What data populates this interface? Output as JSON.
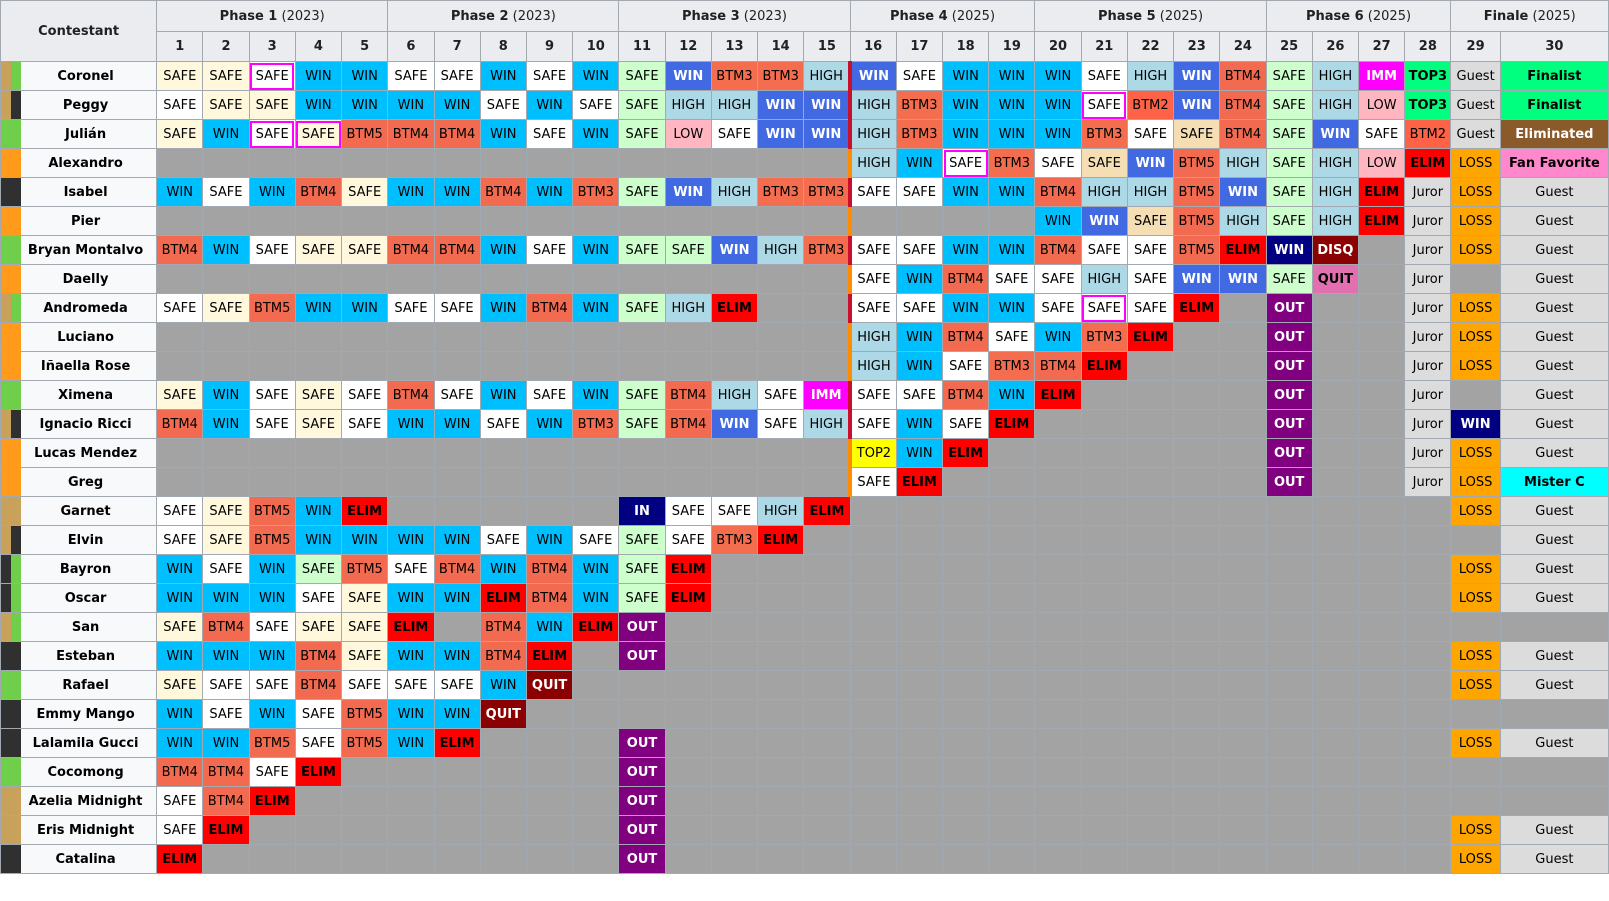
{
  "header": {
    "contestant_label": "Contestant",
    "phases": [
      {
        "name": "Phase 1",
        "year": "(2023)",
        "span": 5
      },
      {
        "name": "Phase 2",
        "year": "(2023)",
        "span": 5
      },
      {
        "name": "Phase 3",
        "year": "(2023)",
        "span": 5
      },
      {
        "name": "Phase 4",
        "year": "(2025)",
        "span": 4
      },
      {
        "name": "Phase 5",
        "year": "(2025)",
        "span": 5
      },
      {
        "name": "Phase 6",
        "year": "(2025)",
        "span": 4
      },
      {
        "name": "Finale",
        "year": "(2025)",
        "span": 2
      }
    ],
    "episodes": [
      "1",
      "2",
      "3",
      "4",
      "5",
      "6",
      "7",
      "8",
      "9",
      "10",
      "11",
      "12",
      "13",
      "14",
      "15",
      "16",
      "17",
      "18",
      "19",
      "20",
      "21",
      "22",
      "23",
      "24",
      "25",
      "26",
      "27",
      "28",
      "29",
      "30"
    ]
  },
  "colors": {
    "stripe_gold": "#c8a25a",
    "stripe_green": "#6fcf4a",
    "stripe_black": "#303030",
    "stripe_orange": "#ff9a1a",
    "gap": "#a3a3a3"
  },
  "rows": [
    {
      "name": "Coronel",
      "stripe": "gold-green",
      "cells": [
        "SAFE|SAFEc",
        "SAFE|SAFEc",
        "SAFE|SAFE|hl",
        "WIN",
        "WIN",
        "SAFE",
        "SAFE",
        "WIN",
        "SAFE",
        "WIN",
        "SAFE|SAFEg",
        "WIN|WIN2",
        "BTM3",
        "BTM3",
        "HIGH",
        "WIN|WIN2",
        "SAFE",
        "WIN",
        "WIN",
        "WIN",
        "SAFE",
        "HIGH",
        "WIN|WIN2",
        "BTM4",
        "SAFE|SAFEg",
        "HIGH",
        "IMM",
        "TOP3",
        "Guest",
        "Finalist"
      ]
    },
    {
      "name": "Peggy",
      "stripe": "gold-black",
      "cells": [
        "SAFE",
        "SAFE|SAFEc",
        "SAFE|SAFEc",
        "WIN",
        "WIN",
        "WIN",
        "WIN",
        "SAFE",
        "WIN",
        "SAFE",
        "SAFE|SAFEg",
        "HIGH",
        "HIGH",
        "WIN|WIN2",
        "WIN|WIN2",
        "HIGH",
        "BTM3",
        "WIN",
        "WIN",
        "WIN",
        "SAFE|SAFE|hl",
        "BTM2",
        "WIN|WIN2",
        "BTM4",
        "SAFE|SAFEg",
        "HIGH",
        "LOW",
        "TOP3",
        "Guest",
        "Finalist"
      ]
    },
    {
      "name": "Julián",
      "stripe": "green",
      "cells": [
        "SAFE|SAFEc",
        "WIN",
        "SAFE|SAFE|hl",
        "SAFE|SAFEc|hl",
        "BTM5",
        "BTM4",
        "BTM4",
        "WIN",
        "SAFE",
        "WIN",
        "SAFE|SAFEg",
        "LOW",
        "SAFE",
        "WIN|WIN2",
        "WIN|WIN2",
        "HIGH",
        "BTM3",
        "WIN",
        "WIN",
        "WIN",
        "BTM3",
        "SAFE",
        "SAFE|SAFEw",
        "BTM4",
        "SAFE|SAFEg",
        "WIN|WIN2",
        "SAFE",
        "BTM2",
        "Guest",
        "Eliminated"
      ]
    },
    {
      "name": "Alexandro",
      "stripe": "orange",
      "cells": [
        "",
        "",
        "",
        "",
        "",
        "",
        "",
        "",
        "",
        "",
        "",
        "",
        "",
        "",
        "",
        "HIGH",
        "WIN",
        "SAFE|SAFE|hl",
        "BTM3",
        "SAFE",
        "SAFE|SAFEw",
        "WIN|WIN2",
        "BTM5",
        "HIGH",
        "SAFE|SAFEg",
        "HIGH",
        "LOW",
        "ELIM",
        "LOSS",
        "Fan Favorite|FanFavorite"
      ]
    },
    {
      "name": "Isabel",
      "stripe": "black",
      "cells": [
        "WIN",
        "SAFE",
        "WIN",
        "BTM4",
        "SAFE|SAFEc",
        "WIN",
        "WIN",
        "BTM4",
        "WIN",
        "BTM3",
        "SAFE|SAFEg",
        "WIN|WIN2",
        "HIGH",
        "BTM3",
        "BTM3",
        "SAFE",
        "SAFE",
        "WIN",
        "WIN",
        "BTM4",
        "HIGH",
        "HIGH",
        "BTM5",
        "WIN|WIN2",
        "SAFE|SAFEg",
        "HIGH",
        "ELIM",
        "Juror",
        "LOSS",
        "Guest"
      ]
    },
    {
      "name": "Pier",
      "stripe": "orange",
      "cells": [
        "",
        "",
        "",
        "",
        "",
        "",
        "",
        "",
        "",
        "",
        "",
        "",
        "",
        "",
        "",
        "",
        "",
        "",
        "",
        "WIN",
        "WIN|WIN2",
        "SAFE|SAFEw",
        "BTM5",
        "HIGH",
        "SAFE|SAFEg",
        "HIGH",
        "ELIM",
        "Juror",
        "LOSS",
        "Guest"
      ]
    },
    {
      "name": "Bryan Montalvo",
      "stripe": "green",
      "cells": [
        "BTM4",
        "WIN",
        "SAFE",
        "SAFE|SAFEc",
        "SAFE|SAFEc",
        "BTM4",
        "BTM4",
        "WIN",
        "SAFE",
        "WIN",
        "SAFE|SAFEg",
        "SAFE|SAFEg",
        "WIN|WIN2",
        "HIGH",
        "BTM3",
        "SAFE",
        "SAFE",
        "WIN",
        "WIN",
        "BTM4",
        "SAFE",
        "SAFE",
        "BTM5",
        "ELIM",
        "WIN|WINN",
        "DISQ",
        "",
        "Juror",
        "LOSS",
        "Guest"
      ]
    },
    {
      "name": "Daelly",
      "stripe": "orange",
      "cells": [
        "",
        "",
        "",
        "",
        "",
        "",
        "",
        "",
        "",
        "",
        "",
        "",
        "",
        "",
        "",
        "SAFE",
        "WIN",
        "BTM4",
        "SAFE",
        "SAFE",
        "HIGH",
        "SAFE",
        "WIN|WIN2",
        "WIN|WIN2",
        "SAFE|SAFEg",
        "QUIT|QUITp",
        "",
        "Juror",
        "",
        "Guest"
      ]
    },
    {
      "name": "Andromeda",
      "stripe": "gold-green",
      "cells": [
        "SAFE",
        "SAFE|SAFEc",
        "BTM5",
        "WIN",
        "WIN",
        "SAFE",
        "SAFE",
        "WIN",
        "BTM4",
        "WIN",
        "SAFE|SAFEg",
        "HIGH",
        "ELIM",
        "",
        "",
        "SAFE",
        "SAFE",
        "WIN",
        "WIN",
        "SAFE",
        "SAFE|SAFE|hl",
        "SAFE",
        "ELIM",
        "",
        "OUT",
        "",
        "",
        "Juror",
        "LOSS",
        "Guest"
      ]
    },
    {
      "name": "Luciano",
      "stripe": "orange",
      "cells": [
        "",
        "",
        "",
        "",
        "",
        "",
        "",
        "",
        "",
        "",
        "",
        "",
        "",
        "",
        "",
        "HIGH",
        "WIN",
        "BTM4",
        "SAFE",
        "WIN",
        "BTM3",
        "ELIM",
        "",
        "",
        "OUT",
        "",
        "",
        "Juror",
        "LOSS",
        "Guest"
      ]
    },
    {
      "name": "Iñaella Rose",
      "stripe": "orange",
      "cells": [
        "",
        "",
        "",
        "",
        "",
        "",
        "",
        "",
        "",
        "",
        "",
        "",
        "",
        "",
        "",
        "HIGH",
        "WIN",
        "SAFE",
        "BTM3",
        "BTM4",
        "ELIM",
        "",
        "",
        "",
        "OUT",
        "",
        "",
        "Juror",
        "LOSS",
        "Guest"
      ]
    },
    {
      "name": "Ximena",
      "stripe": "green",
      "cells": [
        "SAFE|SAFEc",
        "WIN",
        "SAFE",
        "SAFE|SAFEc",
        "SAFE",
        "BTM4",
        "SAFE",
        "WIN",
        "SAFE",
        "WIN",
        "SAFE|SAFEg",
        "BTM4",
        "HIGH",
        "SAFE",
        "IMM",
        "SAFE",
        "SAFE",
        "BTM4",
        "WIN",
        "ELIM",
        "",
        "",
        "",
        "",
        "OUT",
        "",
        "",
        "Juror",
        "",
        "Guest"
      ]
    },
    {
      "name": "Ignacio Ricci",
      "stripe": "gold-black",
      "cells": [
        "BTM4",
        "WIN",
        "SAFE",
        "SAFE|SAFEc",
        "SAFE",
        "WIN",
        "WIN",
        "SAFE",
        "WIN",
        "BTM3",
        "SAFE|SAFEg",
        "BTM4",
        "WIN|WIN2",
        "SAFE",
        "HIGH",
        "SAFE",
        "WIN",
        "SAFE",
        "ELIM",
        "",
        "",
        "",
        "",
        "",
        "OUT",
        "",
        "",
        "Juror",
        "WIN|WINN",
        "Guest"
      ]
    },
    {
      "name": "Lucas Mendez",
      "stripe": "orange",
      "cells": [
        "",
        "",
        "",
        "",
        "",
        "",
        "",
        "",
        "",
        "",
        "",
        "",
        "",
        "",
        "",
        "TOP2",
        "WIN",
        "ELIM",
        "",
        "",
        "",
        "",
        "",
        "",
        "OUT",
        "",
        "",
        "Juror",
        "LOSS",
        "Guest"
      ]
    },
    {
      "name": "Greg",
      "stripe": "orange",
      "cells": [
        "",
        "",
        "",
        "",
        "",
        "",
        "",
        "",
        "",
        "",
        "",
        "",
        "",
        "",
        "",
        "SAFE",
        "ELIM",
        "",
        "",
        "",
        "",
        "",
        "",
        "",
        "OUT",
        "",
        "",
        "Juror",
        "LOSS",
        "Mister C|MisterC"
      ]
    },
    {
      "name": "Garnet",
      "stripe": "gold",
      "cells": [
        "SAFE",
        "SAFE|SAFEc",
        "BTM5",
        "WIN",
        "ELIM",
        "",
        "",
        "",
        "",
        "",
        "IN",
        "SAFE",
        "SAFE",
        "HIGH",
        "ELIM",
        "",
        "",
        "",
        "",
        "",
        "",
        "",
        "",
        "",
        "",
        "",
        "",
        "",
        "LOSS",
        "Guest"
      ]
    },
    {
      "name": "Elvin",
      "stripe": "gold-black",
      "cells": [
        "SAFE",
        "SAFE|SAFEc",
        "BTM5",
        "WIN",
        "WIN",
        "WIN",
        "WIN",
        "SAFE",
        "WIN",
        "SAFE",
        "SAFE|SAFEg",
        "SAFE",
        "BTM3",
        "ELIM",
        "",
        "",
        "",
        "",
        "",
        "",
        "",
        "",
        "",
        "",
        "",
        "",
        "",
        "",
        "",
        "Guest"
      ]
    },
    {
      "name": "Bayron",
      "stripe": "black-green",
      "cells": [
        "WIN",
        "SAFE",
        "WIN",
        "SAFE|SAFEg",
        "BTM5",
        "SAFE",
        "BTM4",
        "WIN",
        "BTM4",
        "WIN",
        "SAFE|SAFEg",
        "ELIM",
        "",
        "",
        "",
        "",
        "",
        "",
        "",
        "",
        "",
        "",
        "",
        "",
        "",
        "",
        "",
        "",
        "LOSS",
        "Guest"
      ]
    },
    {
      "name": "Oscar",
      "stripe": "black-green",
      "cells": [
        "WIN",
        "WIN",
        "WIN",
        "SAFE",
        "SAFE|SAFEc",
        "WIN",
        "WIN",
        "ELIM",
        "BTM4",
        "WIN",
        "SAFE|SAFEg",
        "ELIM",
        "",
        "",
        "",
        "",
        "",
        "",
        "",
        "",
        "",
        "",
        "",
        "",
        "",
        "",
        "",
        "",
        "LOSS",
        "Guest"
      ]
    },
    {
      "name": "San",
      "stripe": "gold-green",
      "cells": [
        "SAFE|SAFEc",
        "BTM4",
        "SAFE",
        "SAFE|SAFEc",
        "SAFE|SAFEc",
        "ELIM",
        "",
        "BTM4",
        "WIN",
        "ELIM",
        "OUT",
        "",
        "",
        "",
        "",
        "",
        "",
        "",
        "",
        "",
        "",
        "",
        "",
        "",
        "",
        "",
        "",
        "",
        "",
        ""
      ]
    },
    {
      "name": "Esteban",
      "stripe": "black",
      "cells": [
        "WIN",
        "WIN",
        "WIN",
        "BTM4",
        "SAFE|SAFEc",
        "WIN",
        "WIN",
        "BTM4",
        "ELIM",
        "",
        "OUT",
        "",
        "",
        "",
        "",
        "",
        "",
        "",
        "",
        "",
        "",
        "",
        "",
        "",
        "",
        "",
        "",
        "",
        "LOSS",
        "Guest"
      ]
    },
    {
      "name": "Rafael",
      "stripe": "green",
      "cells": [
        "SAFE|SAFEc",
        "SAFE",
        "SAFE",
        "BTM4",
        "SAFE",
        "SAFE",
        "SAFE",
        "WIN",
        "QUIT",
        "",
        "",
        "",
        "",
        "",
        "",
        "",
        "",
        "",
        "",
        "",
        "",
        "",
        "",
        "",
        "",
        "",
        "",
        "",
        "LOSS",
        "Guest"
      ]
    },
    {
      "name": "Emmy Mango",
      "stripe": "black",
      "cells": [
        "WIN",
        "SAFE",
        "WIN",
        "SAFE",
        "BTM5",
        "WIN",
        "WIN",
        "QUIT",
        "",
        "",
        "",
        "",
        "",
        "",
        "",
        "",
        "",
        "",
        "",
        "",
        "",
        "",
        "",
        "",
        "",
        "",
        "",
        "",
        "",
        ""
      ]
    },
    {
      "name": "Lalamila Gucci",
      "stripe": "black",
      "cells": [
        "WIN",
        "WIN",
        "BTM5",
        "SAFE",
        "BTM5",
        "WIN",
        "ELIM",
        "",
        "",
        "",
        "OUT",
        "",
        "",
        "",
        "",
        "",
        "",
        "",
        "",
        "",
        "",
        "",
        "",
        "",
        "",
        "",
        "",
        "",
        "LOSS",
        "Guest"
      ]
    },
    {
      "name": "Cocomong",
      "stripe": "green",
      "cells": [
        "BTM4",
        "BTM4",
        "SAFE",
        "ELIM",
        "",
        "",
        "",
        "",
        "",
        "",
        "OUT",
        "",
        "",
        "",
        "",
        "",
        "",
        "",
        "",
        "",
        "",
        "",
        "",
        "",
        "",
        "",
        "",
        "",
        "",
        ""
      ]
    },
    {
      "name": "Azelia Midnight",
      "stripe": "gold",
      "cells": [
        "SAFE",
        "BTM4",
        "ELIM",
        "",
        "",
        "",
        "",
        "",
        "",
        "",
        "OUT",
        "",
        "",
        "",
        "",
        "",
        "",
        "",
        "",
        "",
        "",
        "",
        "",
        "",
        "",
        "",
        "",
        "",
        "",
        ""
      ]
    },
    {
      "name": "Eris Midnight",
      "stripe": "gold",
      "cells": [
        "SAFE",
        "ELIM",
        "",
        "",
        "",
        "",
        "",
        "",
        "",
        "",
        "OUT",
        "",
        "",
        "",
        "",
        "",
        "",
        "",
        "",
        "",
        "",
        "",
        "",
        "",
        "",
        "",
        "",
        "",
        "LOSS",
        "Guest"
      ]
    },
    {
      "name": "Catalina",
      "stripe": "black",
      "cells": [
        "ELIM",
        "",
        "",
        "",
        "",
        "",
        "",
        "",
        "",
        "",
        "OUT",
        "",
        "",
        "",
        "",
        "",
        "",
        "",
        "",
        "",
        "",
        "",
        "",
        "",
        "",
        "",
        "",
        "",
        "LOSS",
        "Guest"
      ]
    }
  ]
}
